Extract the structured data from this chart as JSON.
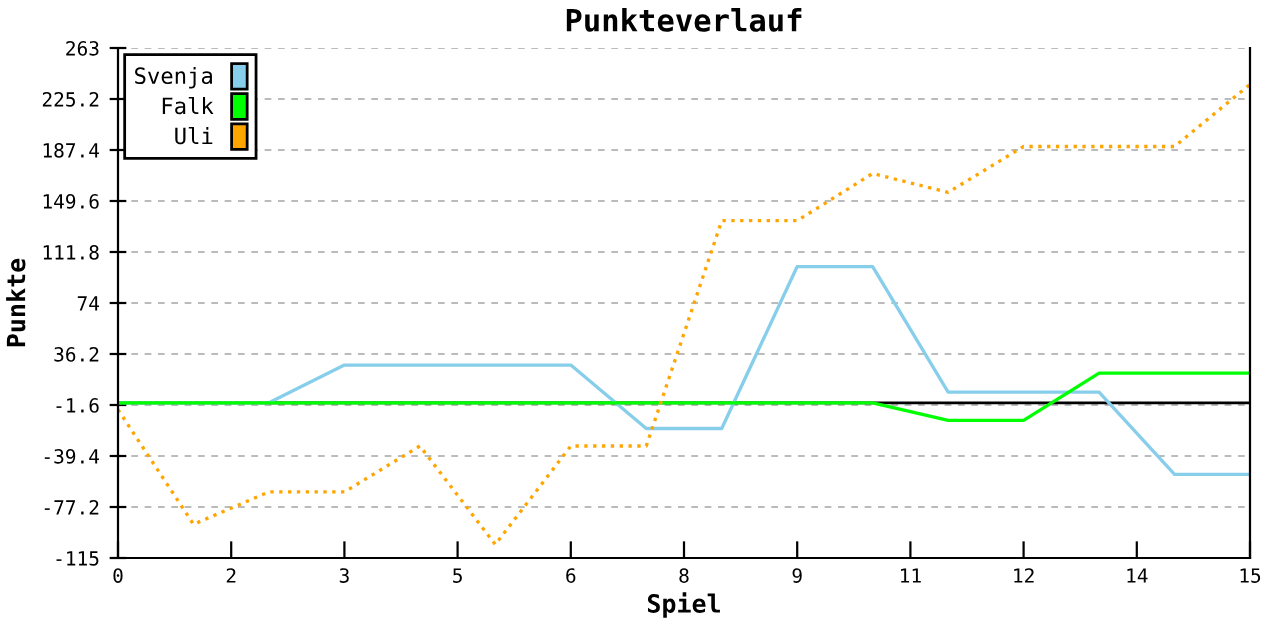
{
  "chart_data": {
    "type": "line",
    "title": "Punkteverlauf",
    "xlabel": "Spiel",
    "ylabel": "Punkte",
    "x": [
      0,
      1,
      2,
      3,
      4,
      5,
      6,
      7,
      8,
      9,
      10,
      11,
      12,
      13,
      14,
      15
    ],
    "xlim": [
      0,
      15
    ],
    "xticks": [
      0,
      {
        "value": 1.5,
        "label": "2"
      },
      3,
      {
        "value": 4.5,
        "label": "5"
      },
      6,
      {
        "value": 7.5,
        "label": "8"
      },
      9,
      {
        "value": 10.5,
        "label": "11"
      },
      12,
      {
        "value": 13.5,
        "label": "14"
      },
      15
    ],
    "ylim": [
      -115,
      263
    ],
    "yticks": [
      -115,
      -77.2,
      -39.4,
      -1.6,
      36.2,
      74,
      111.8,
      149.6,
      187.4,
      225.2,
      263
    ],
    "grid": "y",
    "legend": "top left",
    "marker": "none",
    "ref_lines": [
      {
        "axis": "y",
        "value": 0,
        "color": "#000000"
      }
    ],
    "series": [
      {
        "name": "Svenja",
        "color": "#87ceeb",
        "line_style": "solid",
        "values": [
          0,
          0,
          0,
          28,
          28,
          28,
          28,
          -19,
          -19,
          101,
          101,
          8,
          8,
          8,
          -53,
          -53
        ]
      },
      {
        "name": "Falk",
        "color": "#00ff00",
        "line_style": "solid",
        "values": [
          0,
          0,
          0,
          0,
          0,
          0,
          0,
          0,
          0,
          0,
          0,
          -13,
          -13,
          22,
          22,
          22
        ]
      },
      {
        "name": "Uli",
        "color": "#ffa500",
        "line_style": "dotted",
        "values": [
          -5,
          -90,
          -66,
          -66,
          -32,
          -105,
          -32,
          -32,
          135,
          135,
          170,
          156,
          190,
          190,
          190,
          236
        ]
      }
    ]
  }
}
